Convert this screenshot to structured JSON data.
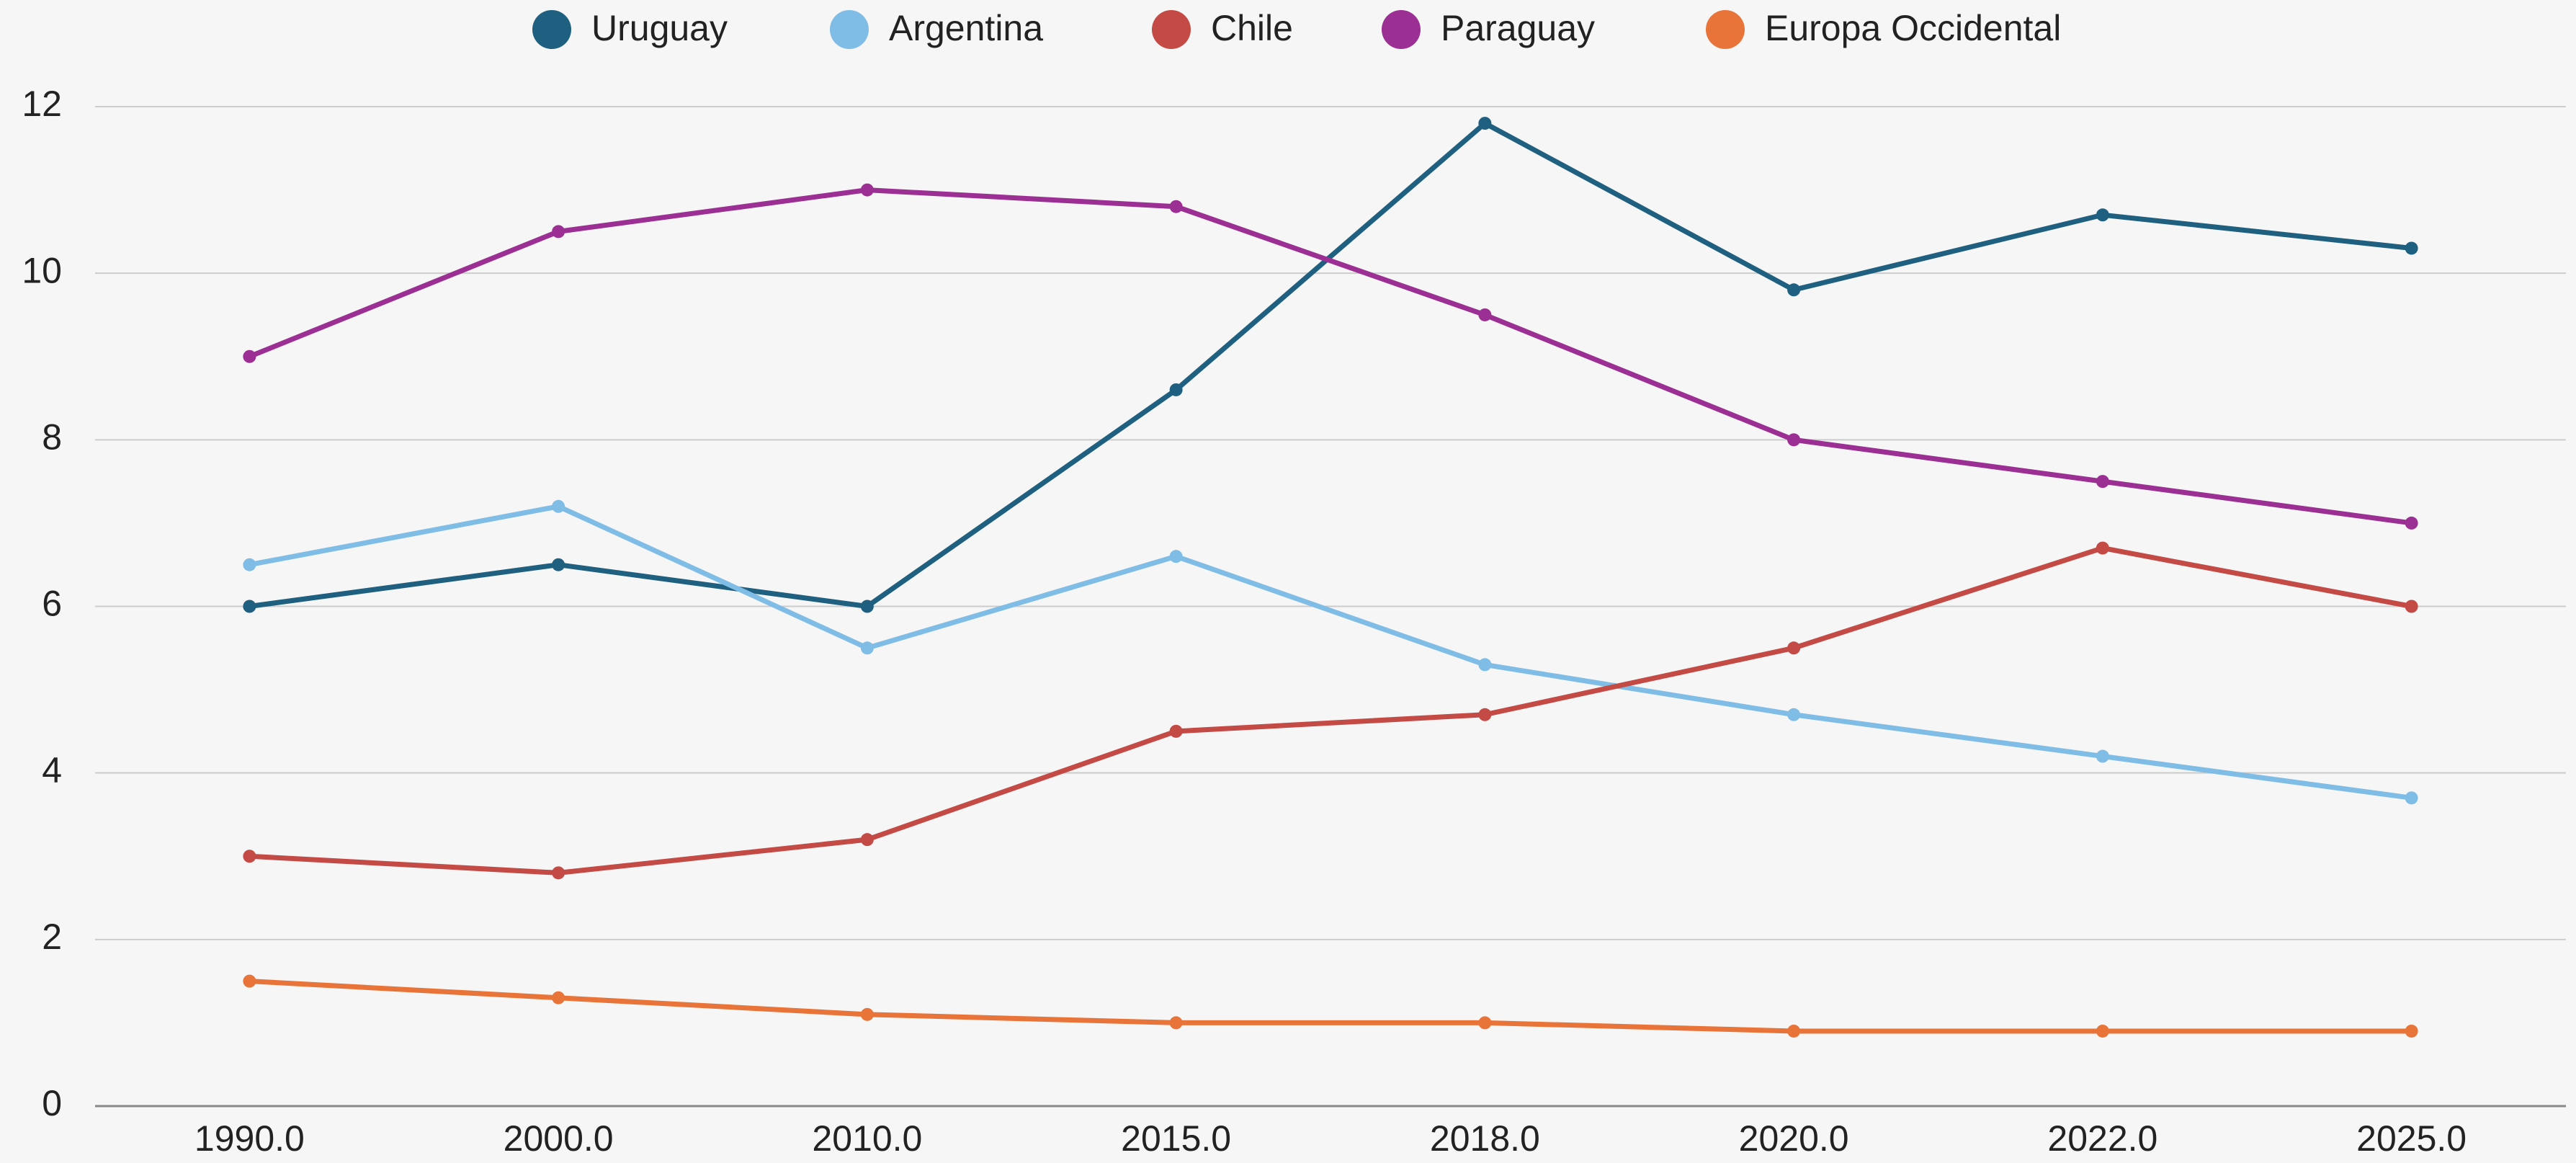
{
  "chart_data": {
    "type": "line",
    "categories": [
      "1990.0",
      "2000.0",
      "2010.0",
      "2015.0",
      "2018.0",
      "2020.0",
      "2022.0",
      "2025.0"
    ],
    "series": [
      {
        "name": "Uruguay",
        "color": "#1f5f7f",
        "values": [
          6,
          6.5,
          6,
          8.6,
          11.8,
          9.8,
          10.7,
          10.3
        ]
      },
      {
        "name": "Argentina",
        "color": "#7fbde6",
        "values": [
          6.5,
          7.2,
          5.5,
          6.6,
          5.3,
          4.7,
          4.2,
          3.7
        ]
      },
      {
        "name": "Chile",
        "color": "#c44a45",
        "values": [
          3,
          2.8,
          3.2,
          4.5,
          4.7,
          5.5,
          6.7,
          6.0
        ]
      },
      {
        "name": "Paraguay",
        "color": "#9b2f93",
        "values": [
          9,
          10.5,
          11,
          10.8,
          9.5,
          8,
          7.5,
          7
        ]
      },
      {
        "name": "Europa Occidental",
        "color": "#e8743a",
        "values": [
          1.5,
          1.3,
          1.1,
          1.0,
          1.0,
          0.9,
          0.9,
          0.9
        ]
      }
    ],
    "ylim": [
      0,
      12
    ],
    "yticks": [
      0,
      2,
      4,
      6,
      8,
      10,
      12
    ],
    "grid": true,
    "legend": "top"
  }
}
